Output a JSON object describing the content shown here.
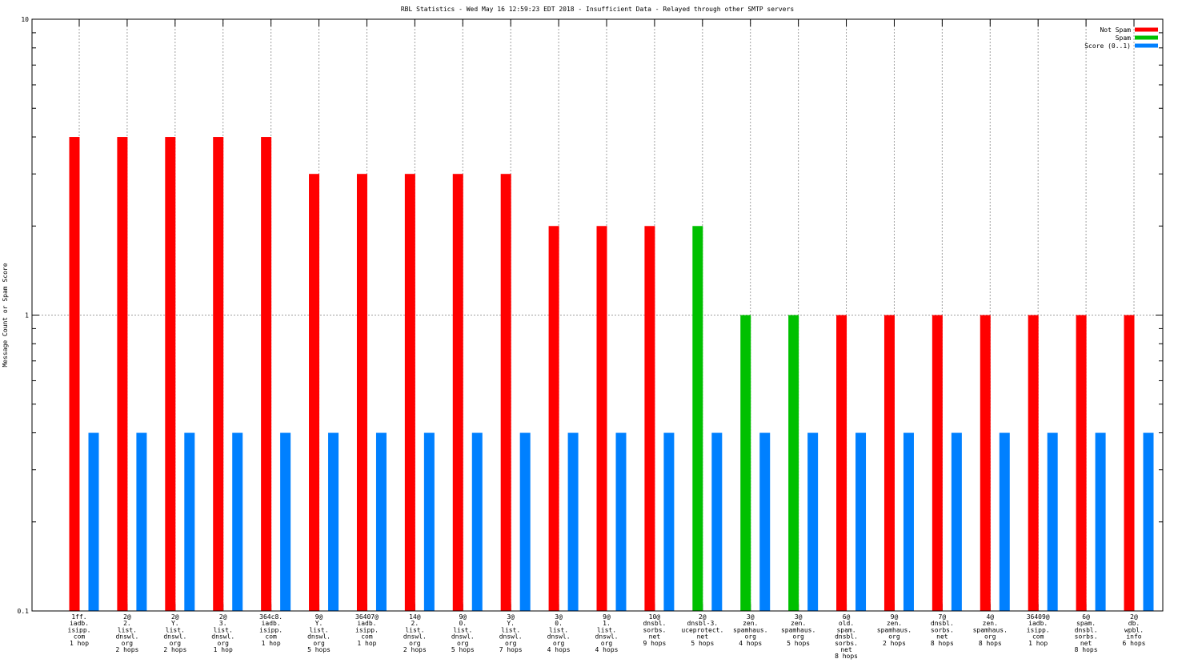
{
  "chart_data": {
    "type": "bar",
    "title": "RBL Statistics - Wed May 16 12:59:23 EDT 2018 - Insufficient Data - Relayed through other SMTP servers",
    "xlabel": "",
    "ylabel": "Message Count or Spam Score",
    "yscale": "log",
    "ylim": [
      0.1,
      10
    ],
    "yticks": [
      "0.1",
      "1",
      "10"
    ],
    "grid": true,
    "legend_position": "top-right",
    "categories": [
      [
        "1ff.",
        "iadb.",
        "isipp.",
        "com",
        "1 hop"
      ],
      [
        "2@",
        "2.",
        "list.",
        "dnswl.",
        "org",
        "2 hops"
      ],
      [
        "2@",
        "Y.",
        "list.",
        "dnswl.",
        "org",
        "2 hops"
      ],
      [
        "2@",
        "3.",
        "list.",
        "dnswl.",
        "org",
        "1 hop"
      ],
      [
        "364c8.",
        "iadb.",
        "isipp.",
        "com",
        "1 hop"
      ],
      [
        "9@",
        "Y.",
        "list.",
        "dnswl.",
        "org",
        "5 hops"
      ],
      [
        "36407@",
        "iadb.",
        "isipp.",
        "com",
        "1 hop"
      ],
      [
        "14@",
        "2.",
        "list.",
        "dnswl.",
        "org",
        "2 hops"
      ],
      [
        "9@",
        "0.",
        "list.",
        "dnswl.",
        "org",
        "5 hops"
      ],
      [
        "3@",
        "Y.",
        "list.",
        "dnswl.",
        "org",
        "7 hops"
      ],
      [
        "3@",
        "0.",
        "list.",
        "dnswl.",
        "org",
        "4 hops"
      ],
      [
        "9@",
        "1.",
        "list.",
        "dnswl.",
        "org",
        "4 hops"
      ],
      [
        "10@",
        "dnsbl.",
        "sorbs.",
        "net",
        "9 hops"
      ],
      [
        "2@",
        "dnsbl-3.",
        "uceprotect.",
        "net",
        "5 hops"
      ],
      [
        "3@",
        "zen.",
        "spamhaus.",
        "org",
        "4 hops"
      ],
      [
        "3@",
        "zen.",
        "spamhaus.",
        "org",
        "5 hops"
      ],
      [
        "6@",
        "old.",
        "spam.",
        "dnsbl.",
        "sorbs.",
        "net",
        "8 hops"
      ],
      [
        "9@",
        "zen.",
        "spamhaus.",
        "org",
        "2 hops"
      ],
      [
        "7@",
        "dnsbl.",
        "sorbs.",
        "net",
        "8 hops"
      ],
      [
        "4@",
        "zen.",
        "spamhaus.",
        "org",
        "8 hops"
      ],
      [
        "36409@",
        "iadb.",
        "isipp.",
        "com",
        "1 hop"
      ],
      [
        "6@",
        "spam.",
        "dnsbl.",
        "sorbs.",
        "net",
        "8 hops"
      ],
      [
        "2@",
        "db.",
        "wpbl.",
        "info",
        "6 hops"
      ]
    ],
    "series": [
      {
        "name": "Not Spam",
        "color": "#ff0000",
        "values": [
          4,
          4,
          4,
          4,
          4,
          3,
          3,
          3,
          3,
          3,
          2,
          2,
          2,
          null,
          null,
          null,
          1,
          1,
          1,
          1,
          1,
          1,
          1
        ]
      },
      {
        "name": "Spam",
        "color": "#00c000",
        "values": [
          null,
          null,
          null,
          null,
          null,
          null,
          null,
          null,
          null,
          null,
          null,
          null,
          null,
          2,
          1,
          1,
          null,
          null,
          null,
          null,
          null,
          null,
          null
        ]
      },
      {
        "name": "Score (0..1)",
        "color": "#0080ff",
        "values": [
          0.4,
          0.4,
          0.4,
          0.4,
          0.4,
          0.4,
          0.4,
          0.4,
          0.4,
          0.4,
          0.4,
          0.4,
          0.4,
          0.4,
          0.4,
          0.4,
          0.4,
          0.4,
          0.4,
          0.4,
          0.4,
          0.4,
          0.4
        ]
      }
    ]
  }
}
